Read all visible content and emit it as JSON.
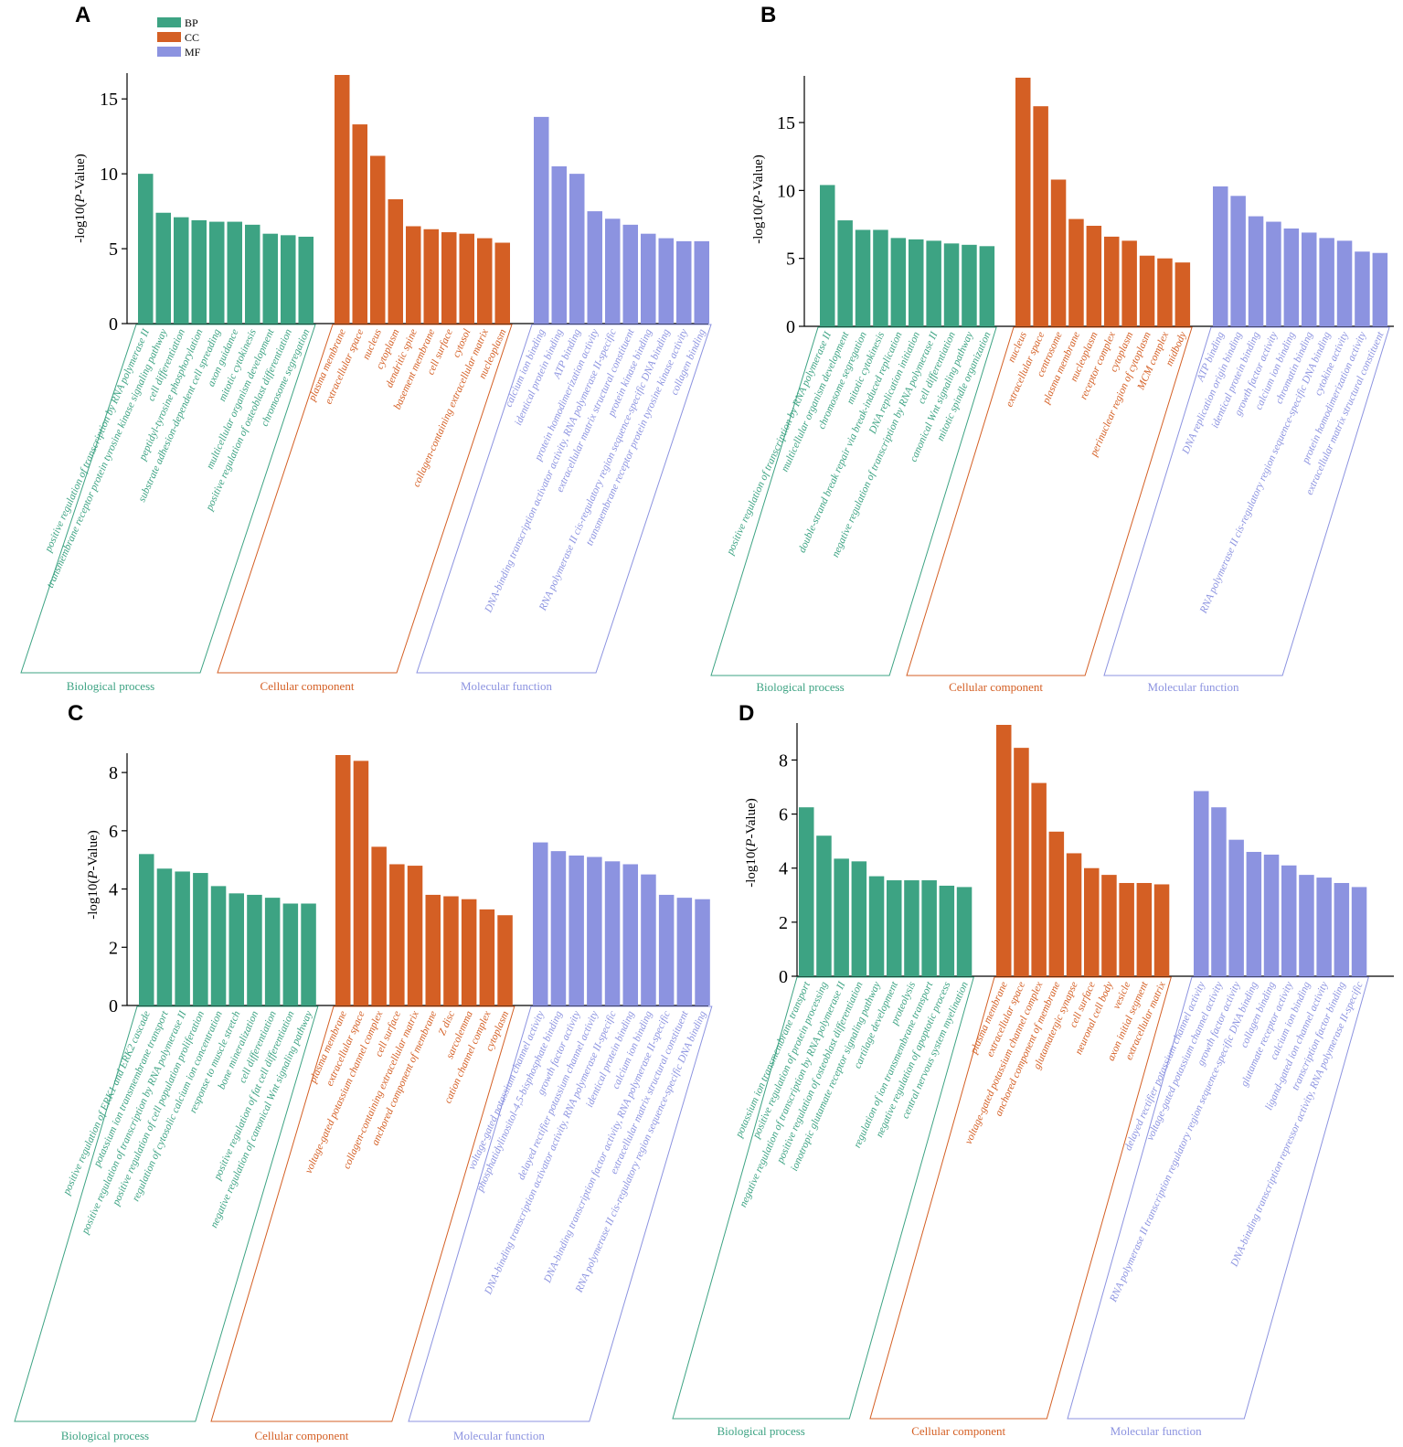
{
  "legend": {
    "items": [
      {
        "key": "BP",
        "label": "BP"
      },
      {
        "key": "CC",
        "label": "CC"
      },
      {
        "key": "MF",
        "label": "MF"
      }
    ]
  },
  "colors": {
    "BP": "#3da383",
    "CC": "#d45f24",
    "MF": "#8c93e0",
    "axis": "#000000"
  },
  "chart_data": [
    {
      "panel": "A",
      "type": "bar",
      "ylabel": "-log10(P-Value)",
      "ylim": [
        0,
        16.6
      ],
      "yticks": [
        0,
        5,
        10,
        15
      ],
      "groups": [
        {
          "key": "BP",
          "title": "Biological process",
          "categories": [
            "positive regulation of transcription by RNA polymerase II",
            "transmembrane receptor protein tyrosine kinase signaling pathway",
            "cell differentiation",
            "peptidyl-tyrosine phosphorylation",
            "substrate adhesion-dependent cell spreading",
            "axon guidance",
            "mitotic cytokinesis",
            "multicellular organism development",
            "positive regulation of osteoblast differentiation",
            "chromosome segregation"
          ],
          "values": [
            10.0,
            7.4,
            7.1,
            6.9,
            6.8,
            6.8,
            6.6,
            6.0,
            5.9,
            5.8
          ]
        },
        {
          "key": "CC",
          "title": "Cellular component",
          "categories": [
            "plasma membrane",
            "extracellular space",
            "nucleus",
            "cytoplasm",
            "dendritic spine",
            "basement membrane",
            "cell surface",
            "cytosol",
            "collagen-containing extracellular matrix",
            "nucleoplasm"
          ],
          "values": [
            16.6,
            13.3,
            11.2,
            8.3,
            6.5,
            6.3,
            6.1,
            6.0,
            5.7,
            5.4
          ]
        },
        {
          "key": "MF",
          "title": "Molecular function",
          "categories": [
            "calcium ion binding",
            "identical protein binding",
            "ATP binding",
            "protein homodimerization activity",
            "DNA-binding transcription activator activity, RNA polymerase II-specific",
            "extracellular matrix structural constituent",
            "protein kinase binding",
            "RNA polymerase II cis-regulatory region sequence-specific DNA binding",
            "transmembrane receptor protein tyrosine kinase activity",
            "collagen binding"
          ],
          "values": [
            13.8,
            10.5,
            10.0,
            7.5,
            7.0,
            6.6,
            6.0,
            5.7,
            5.5,
            5.5
          ]
        }
      ]
    },
    {
      "panel": "B",
      "type": "bar",
      "ylabel": "-log10(P-Value)",
      "ylim": [
        0,
        18.3
      ],
      "yticks": [
        0,
        5,
        10,
        15
      ],
      "groups": [
        {
          "key": "BP",
          "title": "Biological process",
          "categories": [
            "positive regulation of transcription by RNA polymerase II",
            "multicellular organism development",
            "chromosome segregation",
            "mitotic cytokinesis",
            "double-strand break repair via break-induced replication",
            "DNA replication initiation",
            "negative regulation of transcription by RNA polymerase II",
            "cell differentiation",
            "canonical Wnt signaling pathway",
            "mitotic spindle organization"
          ],
          "values": [
            10.4,
            7.8,
            7.1,
            7.1,
            6.5,
            6.4,
            6.3,
            6.1,
            6.0,
            5.9
          ]
        },
        {
          "key": "CC",
          "title": "Cellular component",
          "categories": [
            "nucleus",
            "extracellular space",
            "centrosome",
            "plasma membrane",
            "nucleoplasm",
            "receptor complex",
            "cytoplasm",
            "perinuclear region of cytoplasm",
            "MCM complex",
            "midbody"
          ],
          "values": [
            18.3,
            16.2,
            10.8,
            7.9,
            7.4,
            6.6,
            6.3,
            5.2,
            5.0,
            4.7
          ]
        },
        {
          "key": "MF",
          "title": "Molecular function",
          "categories": [
            "ATP binding",
            "DNA replication origin binding",
            "identical protein binding",
            "growth factor activity",
            "calcium ion binding",
            "chromatin binding",
            "RNA polymerase II cis-regulatory region sequence-specific DNA binding",
            "cytokine activity",
            "protein homodimerization activity",
            "extracellular matrix structural constituent"
          ],
          "values": [
            10.3,
            9.6,
            8.1,
            7.7,
            7.2,
            6.9,
            6.5,
            6.3,
            5.5,
            5.4
          ]
        }
      ]
    },
    {
      "panel": "C",
      "type": "bar",
      "ylabel": "-log10(P-Value)",
      "ylim": [
        0,
        8.6
      ],
      "yticks": [
        0,
        2,
        4,
        6,
        8
      ],
      "groups": [
        {
          "key": "BP",
          "title": "Biological process",
          "categories": [
            "positive regulation of ERK1 and ERK2 cascade",
            "potassium ion transmembrane transport",
            "positive regulation of transcription by RNA polymerase II",
            "positive regulation of cell population proliferation",
            "regulation of cytosolic calcium ion concentration",
            "response to muscle stretch",
            "bone mineralization",
            "cell differentiation",
            "positive regulation of fat cell differentiation",
            "negative regulation of canonical Wnt signaling pathway"
          ],
          "values": [
            5.2,
            4.7,
            4.6,
            4.55,
            4.1,
            3.85,
            3.8,
            3.7,
            3.5,
            3.5
          ]
        },
        {
          "key": "CC",
          "title": "Cellular component",
          "categories": [
            "plasma membrane",
            "extracellular space",
            "voltage-gated potassium channel complex",
            "cell surface",
            "collagen-containing extracellular matrix",
            "anchored component of membrane",
            "Z disc",
            "sarcolemma",
            "cation channel complex",
            "cytoplasm"
          ],
          "values": [
            8.6,
            8.4,
            5.45,
            4.85,
            4.8,
            3.8,
            3.75,
            3.65,
            3.3,
            3.1
          ]
        },
        {
          "key": "MF",
          "title": "Molecular function",
          "categories": [
            "voltage-gated potassium channel activity",
            "phosphatidylinositol-4,5-bisphosphate binding",
            "growth factor activity",
            "delayed rectifier potassium channel activity",
            "DNA-binding transcription activator activity, RNA polymerase II-specific",
            "identical protein binding",
            "calcium ion binding",
            "DNA-binding transcription factor activity, RNA polymerase II-specific",
            "extracellular matrix structural constituent",
            "RNA polymerase II cis-regulatory region sequence-specific DNA binding"
          ],
          "values": [
            5.6,
            5.3,
            5.15,
            5.1,
            4.95,
            4.85,
            4.5,
            3.8,
            3.7,
            3.65
          ]
        }
      ]
    },
    {
      "panel": "D",
      "type": "bar",
      "ylabel": "-log10(P-Value)",
      "ylim": [
        0,
        9.3
      ],
      "yticks": [
        0,
        2,
        4,
        6,
        8
      ],
      "groups": [
        {
          "key": "BP",
          "title": "Biological process",
          "categories": [
            "potassium ion transmembrane transport",
            "positive regulation of protein processing",
            "negative regulation of transcription by RNA polymerase II",
            "positive regulation of osteoblast differentiation",
            "ionotropic glutamate receptor signaling pathway",
            "cartilage development",
            "proteolysis",
            "regulation of ion transmembrane transport",
            "negative regulation of apoptotic process",
            "central nervous system myelination"
          ],
          "values": [
            6.25,
            5.2,
            4.35,
            4.25,
            3.7,
            3.55,
            3.55,
            3.55,
            3.35,
            3.3
          ]
        },
        {
          "key": "CC",
          "title": "Cellular component",
          "categories": [
            "plasma membrane",
            "extracellular space",
            "voltage-gated potassium channel complex",
            "anchored component of membrane",
            "glutamatergic synapse",
            "cell surface",
            "neuronal cell body",
            "vesicle",
            "axon initial segment",
            "extracellular matrix"
          ],
          "values": [
            9.3,
            8.45,
            7.15,
            5.35,
            4.55,
            4.0,
            3.75,
            3.45,
            3.45,
            3.4
          ]
        },
        {
          "key": "MF",
          "title": "Molecular function",
          "categories": [
            "delayed rectifier potassium channel activity",
            "voltage-gated potassium channel activity",
            "growth factor activity",
            "RNA polymerase II transcription regulatory region sequence-specific DNA binding",
            "collagen binding",
            "glutamate receptor activity",
            "calcium ion binding",
            "ligand-gated ion channel activity",
            "transcription factor binding",
            "DNA-binding transcription repressor activity, RNA polymerase II-specific"
          ],
          "values": [
            6.85,
            6.25,
            5.05,
            4.6,
            4.5,
            4.1,
            3.75,
            3.65,
            3.45,
            3.3
          ]
        }
      ]
    }
  ]
}
